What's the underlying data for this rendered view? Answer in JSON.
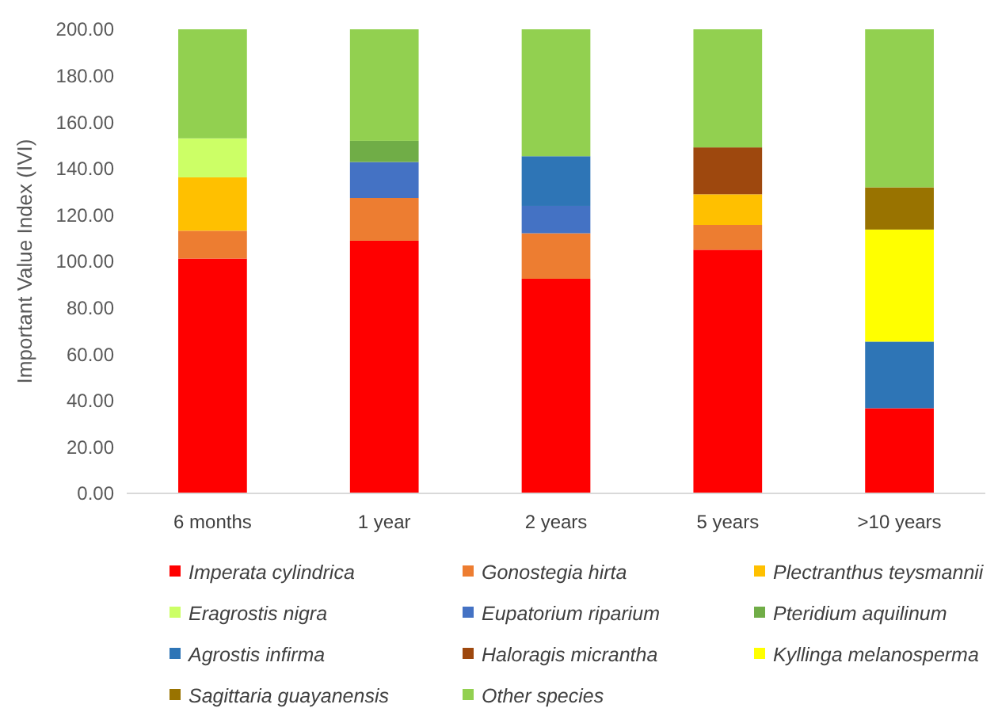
{
  "chart_data": {
    "type": "bar",
    "stacked": true,
    "ylabel": "Important Value Index (IVI)",
    "categories": [
      "6 months",
      "1 year",
      "2 years",
      "5 years",
      ">10 years"
    ],
    "ylim": [
      0,
      200
    ],
    "yticks": [
      {
        "value": 0,
        "label": "0.00"
      },
      {
        "value": 20,
        "label": "20.00"
      },
      {
        "value": 40,
        "label": "40.00"
      },
      {
        "value": 60,
        "label": "60.00"
      },
      {
        "value": 80,
        "label": "80.00"
      },
      {
        "value": 100,
        "label": "100.00"
      },
      {
        "value": 120,
        "label": "120.00"
      },
      {
        "value": 140,
        "label": "140.00"
      },
      {
        "value": 160,
        "label": "160.00"
      },
      {
        "value": 180,
        "label": "180.00"
      },
      {
        "value": 200,
        "label": "200.00"
      }
    ],
    "grid": false,
    "legend": "bottom",
    "series": [
      {
        "name": "Imperata cylindrica",
        "color": "#ff0000",
        "values": [
          101.2,
          108.9,
          92.5,
          105,
          36.7
        ]
      },
      {
        "name": "Gonostegia hirta",
        "color": "#ed7d31",
        "values": [
          12,
          18.4,
          19.6,
          10.7,
          null
        ]
      },
      {
        "name": "Plectranthus teysmannii",
        "color": "#ffc000",
        "values": [
          23,
          null,
          null,
          13.2,
          null
        ]
      },
      {
        "name": "Eragrostis nigra",
        "color": "#ccff66",
        "values": [
          16.8,
          null,
          null,
          null,
          null
        ]
      },
      {
        "name": "Eupatorium riparium",
        "color": "#4472c4",
        "values": [
          null,
          15.5,
          11.8,
          null,
          null
        ]
      },
      {
        "name": "Pteridium aquilinum",
        "color": "#70ad47",
        "values": [
          null,
          9.1,
          null,
          null,
          null
        ]
      },
      {
        "name": "Agrostis infirma",
        "color": "#2e75b6",
        "values": [
          null,
          null,
          21.4,
          null,
          28.7
        ]
      },
      {
        "name": "Haloragis micrantha",
        "color": "#9e480e",
        "values": [
          null,
          null,
          null,
          20.2,
          null
        ]
      },
      {
        "name": "Kyllinga melanosperma",
        "color": "#ffff00",
        "values": [
          null,
          null,
          null,
          null,
          48.3
        ]
      },
      {
        "name": "Sagittaria guayanensis",
        "color": "#997300",
        "values": [
          null,
          null,
          null,
          null,
          18.2
        ]
      },
      {
        "name": "Other species",
        "color": "#92d050",
        "values": [
          47,
          48.1,
          54.7,
          50.9,
          68.1
        ]
      }
    ]
  }
}
